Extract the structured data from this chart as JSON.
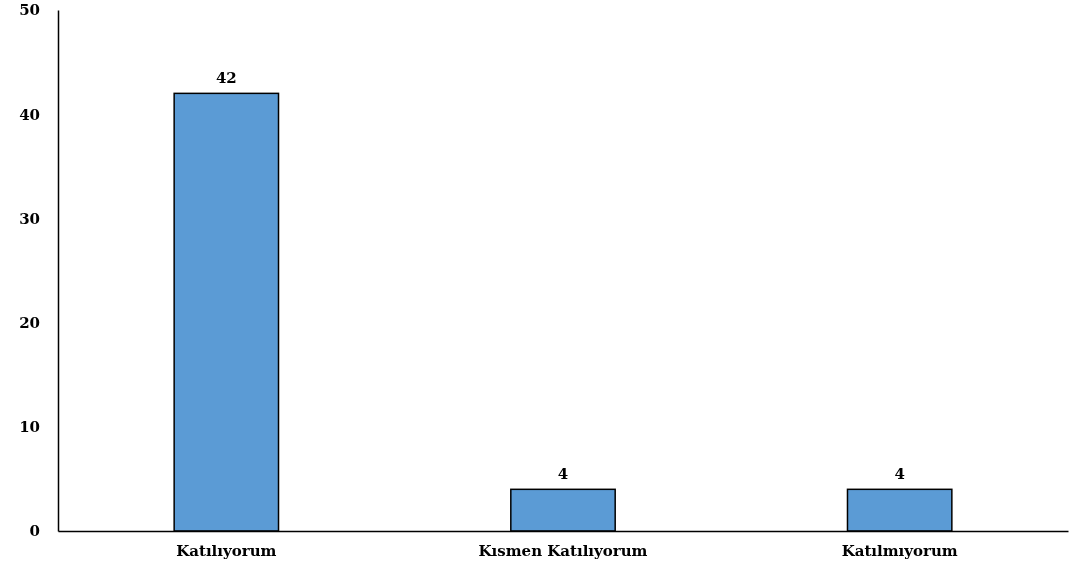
{
  "chart_data": {
    "type": "bar",
    "categories": [
      "Katılıyorum",
      "Kısmen Katılıyorum",
      "Katılmıyorum"
    ],
    "values": [
      42,
      4,
      4
    ],
    "color": "#5b9bd5",
    "ylim": [
      0,
      50
    ],
    "yticks": [
      0,
      10,
      20,
      30,
      40,
      50
    ],
    "data_labels": true,
    "grid": false
  }
}
